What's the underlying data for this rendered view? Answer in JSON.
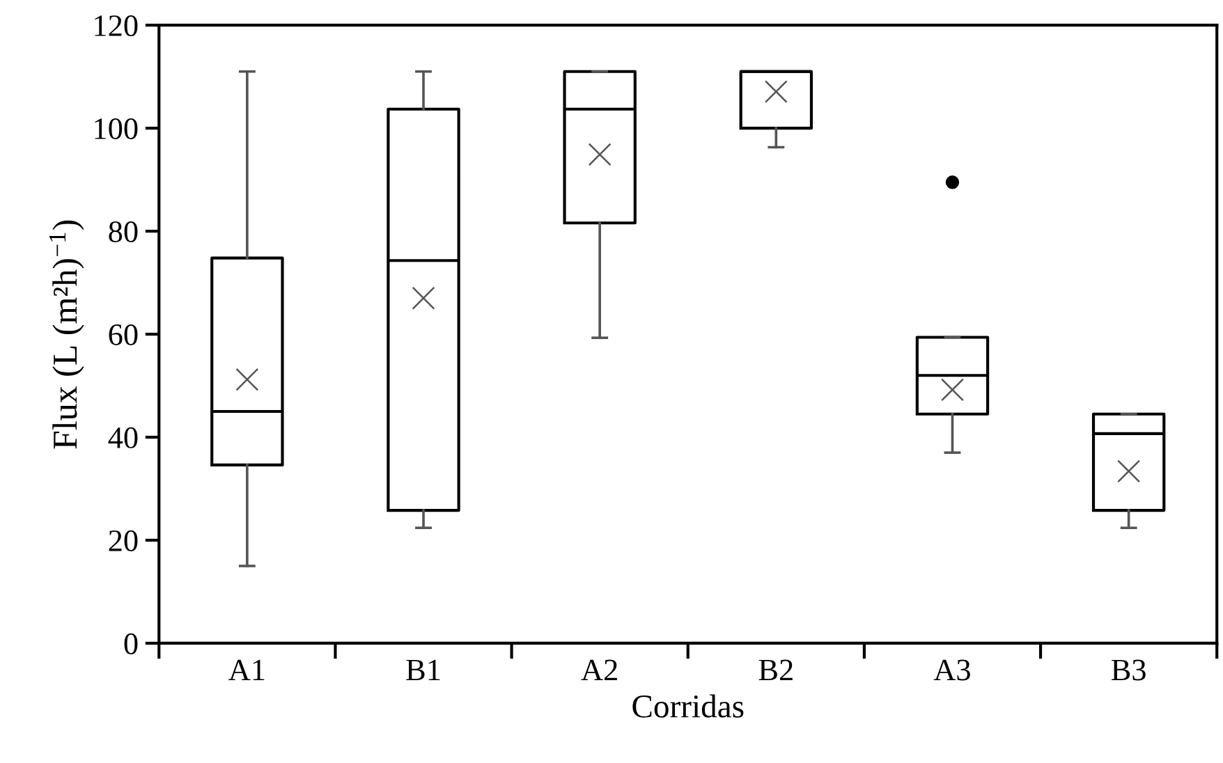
{
  "chart_data": {
    "type": "box",
    "xlabel": "Corridas",
    "ylabel": "Flux (L (m²h)$^{−1}$)",
    "categories": [
      "A1",
      "B1",
      "A2",
      "B2",
      "A3",
      "B3"
    ],
    "boxes": [
      {
        "low": 15,
        "q1": 34.6,
        "median": 45,
        "q3": 74.8,
        "high": 111,
        "mean": 51.2
      },
      {
        "low": 22.4,
        "q1": 25.8,
        "median": 74.3,
        "q3": 103.7,
        "high": 111,
        "mean": 67
      },
      {
        "low": 59.3,
        "q1": 81.6,
        "median": 103.7,
        "q3": 111,
        "high": 111,
        "mean": 94.9
      },
      {
        "low": 96.3,
        "q1": 100,
        "median": 111,
        "q3": 111,
        "high": 111,
        "mean": 107.1
      },
      {
        "low": 37,
        "q1": 44.5,
        "median": 52,
        "q3": 59.4,
        "high": 59.4,
        "mean": 49.2,
        "outliers": [
          89.5
        ]
      },
      {
        "low": 22.4,
        "q1": 25.8,
        "median": 40.7,
        "q3": 44.5,
        "high": 44.5,
        "mean": 33.4
      }
    ],
    "ylim": [
      0,
      120
    ],
    "yticks": [
      0,
      20,
      40,
      60,
      80,
      100,
      120
    ],
    "grid": false,
    "marker": "cross"
  }
}
